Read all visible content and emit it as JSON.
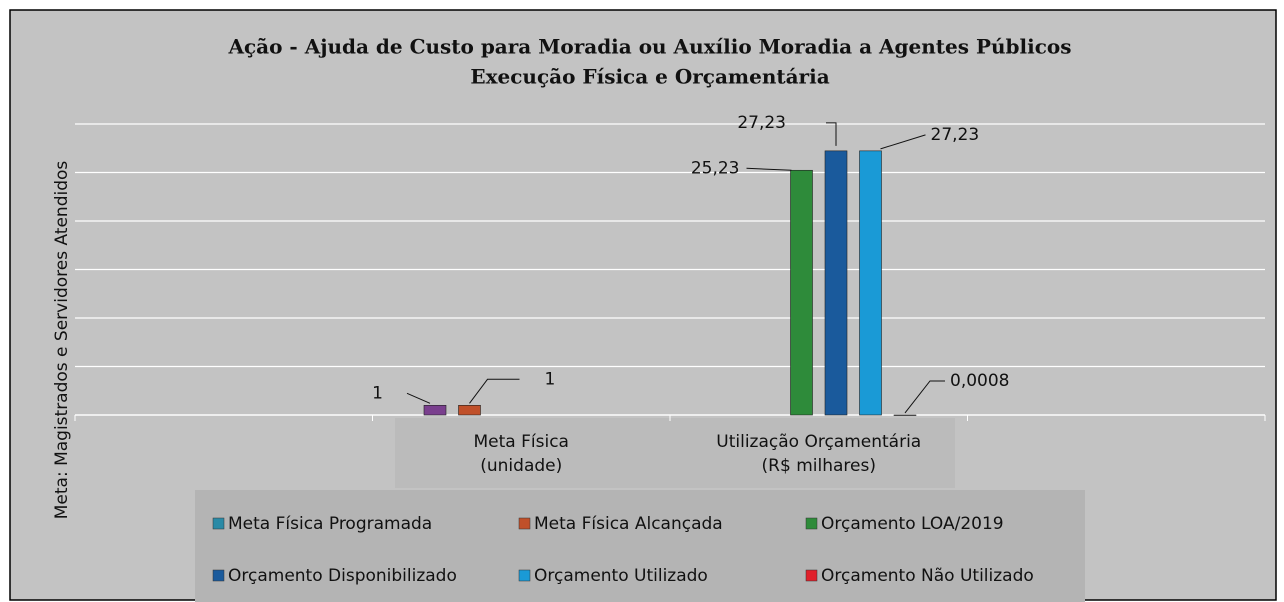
{
  "chart_data": {
    "type": "bar",
    "title": "Ação - Ajuda de Custo para Moradia ou Auxílio Moradia a Agentes Públicos",
    "subtitle": "Execução Física e Orçamentária",
    "y_label": "Meta: Magistrados e Servidores Atendidos",
    "categories": [
      null,
      "Meta Física\n(unidade)",
      "Utilização Orçamentária\n(R$ milhares)",
      null
    ],
    "ylim": [
      0,
      30
    ],
    "yticks": [
      0,
      5,
      10,
      15,
      20,
      25,
      30
    ],
    "grid": true,
    "series": [
      {
        "name": "Meta Física Programada",
        "color": "#2a8aa6",
        "bar_color": "#7a3f8e",
        "values": [
          null,
          1,
          null,
          null
        ],
        "value_labels": [
          null,
          "1",
          null,
          null
        ]
      },
      {
        "name": "Meta Física Alcançada",
        "color": "#c0502a",
        "values": [
          null,
          1,
          null,
          null
        ],
        "value_labels": [
          null,
          "1",
          null,
          null
        ]
      },
      {
        "name": "Orçamento LOA/2019",
        "color": "#2e8b3a",
        "values": [
          null,
          null,
          25.23,
          null
        ],
        "value_labels": [
          null,
          null,
          "25,23",
          null
        ]
      },
      {
        "name": "Orçamento Disponibilizado",
        "color": "#1a5a9c",
        "values": [
          null,
          null,
          27.23,
          null
        ],
        "value_labels": [
          null,
          null,
          "27,23",
          null
        ]
      },
      {
        "name": "Orçamento Utilizado",
        "color": "#1a9ad6",
        "values": [
          null,
          null,
          27.23,
          null
        ],
        "value_labels": [
          null,
          null,
          "27,23",
          null
        ]
      },
      {
        "name": "Orçamento Não Utilizado",
        "color": "#e0202a",
        "values": [
          null,
          null,
          0.0008,
          null
        ],
        "value_labels": [
          null,
          null,
          "0,0008",
          null
        ]
      }
    ]
  }
}
